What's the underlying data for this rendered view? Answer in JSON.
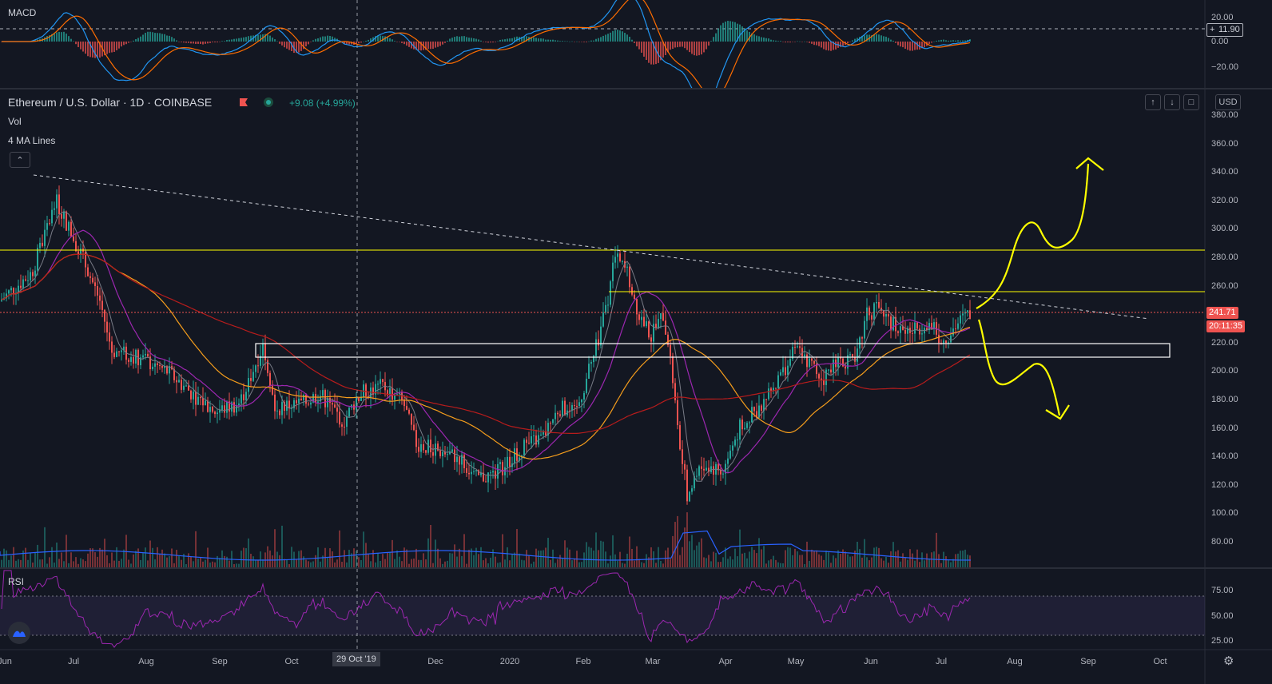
{
  "macd_pane": {
    "label": "MACD",
    "ticks": [
      "20.00",
      "0.00",
      "−20.00"
    ],
    "value_tag": "11.90"
  },
  "main_pane": {
    "symbol_title": "Ethereum / U.S. Dollar · 1D · COINBASE",
    "change": "+9.08 (+4.99%)",
    "indicator_vol": "Vol",
    "indicator_ma": "4 MA Lines",
    "currency": "USD",
    "price_ticks": [
      "380.00",
      "360.00",
      "340.00",
      "320.00",
      "300.00",
      "280.00",
      "260.00",
      "240.00",
      "220.00",
      "200.00",
      "180.00",
      "160.00",
      "140.00",
      "120.00",
      "100.00",
      "80.00"
    ],
    "last_price": "241.71",
    "countdown": "20:11:35"
  },
  "rsi_pane": {
    "label": "RSI",
    "ticks": [
      "75.00",
      "50.00",
      "25.00"
    ]
  },
  "time_axis": {
    "labels": [
      "Jun",
      "Jul",
      "Aug",
      "Sep",
      "Oct",
      "Dec",
      "2020",
      "Feb",
      "Mar",
      "Apr",
      "May",
      "Jun",
      "Jul",
      "Aug",
      "Sep",
      "Oct"
    ],
    "crosshair_label": "29 Oct '19"
  },
  "colors": {
    "background": "#131722",
    "up": "#26a69a",
    "down": "#ef5350",
    "annotation": "#ffff00",
    "ma_purple": "#9c27b0",
    "ma_orange": "#f59d1c",
    "ma_red": "#b71c1c",
    "ma_gray": "#787b86"
  },
  "icons": [
    "flag-icon",
    "live-dot-icon",
    "arrow-up-icon",
    "arrow-down-icon",
    "fullscreen-icon",
    "chevron-up-icon",
    "settings-gear-icon",
    "tv-logo-icon"
  ]
}
